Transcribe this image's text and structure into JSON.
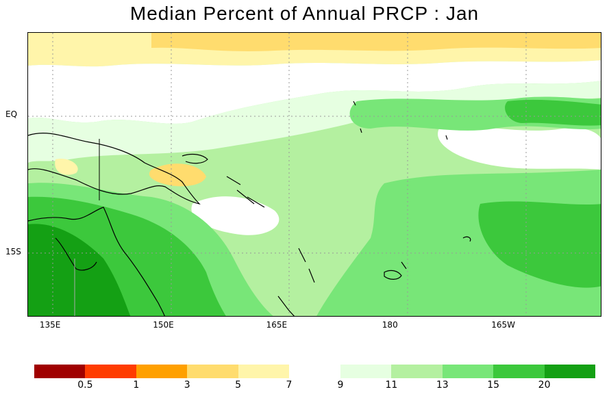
{
  "title": "Median Percent of Annual PRCP :   Jan",
  "map": {
    "y_labels": [
      {
        "label": "EQ",
        "lat": 0
      },
      {
        "label": "15S",
        "lat": -15
      }
    ],
    "x_labels": [
      {
        "label": "135E",
        "lon": 135
      },
      {
        "label": "150E",
        "lon": 150
      },
      {
        "label": "165E",
        "lon": 165
      },
      {
        "label": "180",
        "lon": 180
      },
      {
        "label": "165W",
        "lon": 195
      }
    ],
    "lon_range": [
      132,
      208
    ],
    "lat_range": [
      -22,
      9
    ]
  },
  "colorbar": {
    "low_colors": [
      "#a00000",
      "#ff3c00",
      "#ffa000",
      "#ffdc6e",
      "#fff5aa"
    ],
    "low_labels": [
      "0.5",
      "1",
      "3",
      "5",
      "7"
    ],
    "high_colors": [
      "#e6ffe1",
      "#b4f0a0",
      "#78e678",
      "#3cc83c",
      "#14a014"
    ],
    "high_labels": [
      "9",
      "11",
      "13",
      "15",
      "20"
    ]
  }
}
